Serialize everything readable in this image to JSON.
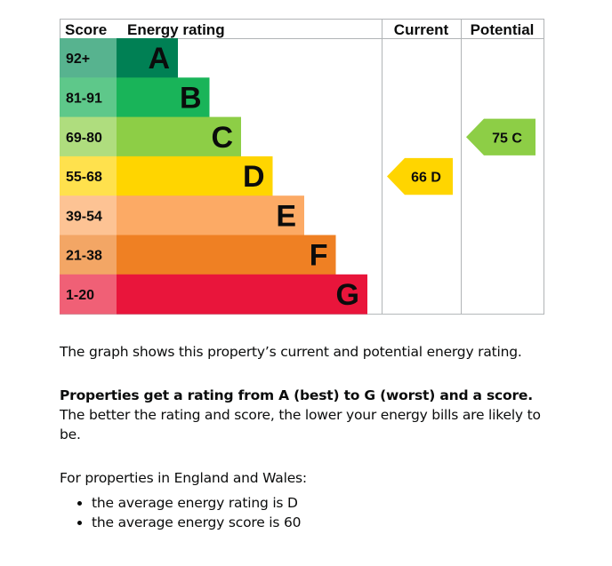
{
  "chart_data": {
    "type": "bar",
    "headers": {
      "score": "Score",
      "rating": "Energy rating",
      "current": "Current",
      "potential": "Potential"
    },
    "bands": [
      {
        "letter": "A",
        "range": "92+",
        "bar": "#008054",
        "cell": "#57b38f",
        "length": 1
      },
      {
        "letter": "B",
        "range": "81-91",
        "bar": "#19b459",
        "cell": "#5ec88a",
        "length": 2
      },
      {
        "letter": "C",
        "range": "69-80",
        "bar": "#8dce46",
        "cell": "#afdd7e",
        "length": 3
      },
      {
        "letter": "D",
        "range": "55-68",
        "bar": "#ffd500",
        "cell": "#ffe14d",
        "length": 4
      },
      {
        "letter": "E",
        "range": "39-54",
        "bar": "#fcaa65",
        "cell": "#fdc394",
        "length": 5
      },
      {
        "letter": "F",
        "range": "21-38",
        "bar": "#ef8023",
        "cell": "#f3a665",
        "length": 6
      },
      {
        "letter": "G",
        "range": "1-20",
        "bar": "#e9153b",
        "cell": "#f06076",
        "length": 7
      }
    ],
    "current": {
      "score": 66,
      "letter": "D",
      "label": "66  D",
      "color": "#ffd500"
    },
    "potential": {
      "score": 75,
      "letter": "C",
      "label": "75  C",
      "color": "#8dce46"
    }
  },
  "text": {
    "intro": "The graph shows this property’s current and potential energy rating.",
    "bold_sentence": "Properties get a rating from A (best) to G (worst) and a score.",
    "rest_sentence": " The better the rating and score, the lower your energy bills are likely to be.",
    "region": "For properties in England and Wales:",
    "bullets": [
      "the average energy rating is D",
      "the average energy score is 60"
    ]
  }
}
